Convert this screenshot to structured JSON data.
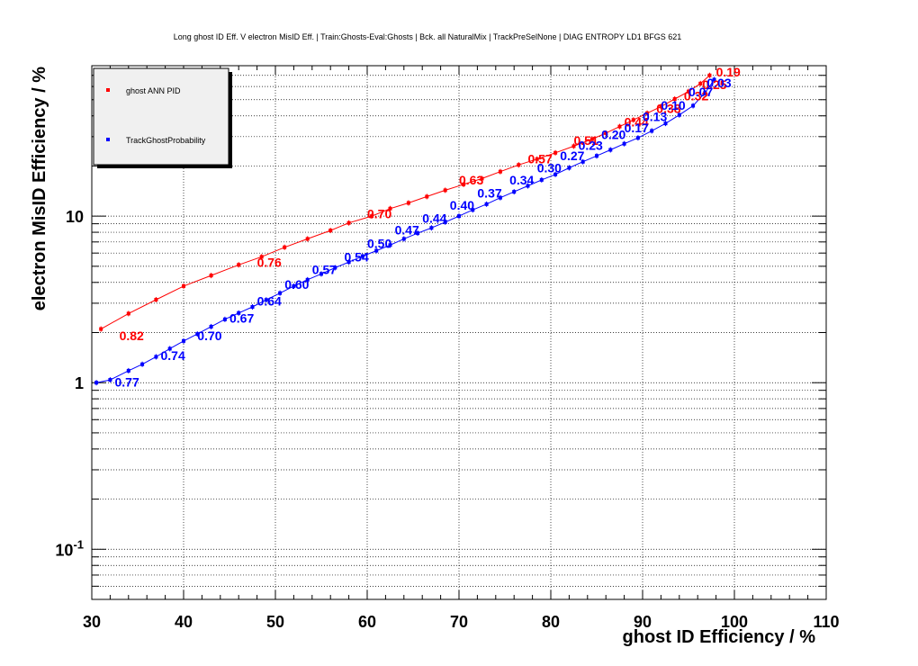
{
  "chart_data": {
    "type": "line",
    "title": "Long ghost ID Eff. V electron MisID Eff. | Train:Ghosts-Eval:Ghosts | Bck. all NaturalMix | TrackPreSelNone | DIAG ENTROPY LD1 BFGS 621",
    "xlabel": "ghost ID Efficiency / %",
    "ylabel": "electron MisID Efficiency / %",
    "x_scale": "linear",
    "y_scale": "log",
    "xlim": [
      30,
      110
    ],
    "ylim": [
      0.05,
      80
    ],
    "grid": true,
    "legend_position": "top-left",
    "x_ticks": [
      "30",
      "40",
      "50",
      "60",
      "70",
      "80",
      "90",
      "100",
      "110"
    ],
    "y_ticks": [
      {
        "value": 10,
        "label": "10"
      },
      {
        "value": 1,
        "label": "1"
      },
      {
        "value": 0.1,
        "label": "10",
        "sup": "-1"
      }
    ],
    "series": [
      {
        "name": "ghost ANN PID",
        "color": "#ff0000",
        "points": [
          [
            31,
            2.1
          ],
          [
            34,
            2.6
          ],
          [
            37,
            3.15
          ],
          [
            40,
            3.8
          ],
          [
            43,
            4.4
          ],
          [
            46,
            5.1
          ],
          [
            48.5,
            5.7
          ],
          [
            51,
            6.5
          ],
          [
            53.5,
            7.3
          ],
          [
            56,
            8.2
          ],
          [
            58,
            9.1
          ],
          [
            60.5,
            10.0
          ],
          [
            62.5,
            11.1
          ],
          [
            64.5,
            12.0
          ],
          [
            66.5,
            13.1
          ],
          [
            68.5,
            14.3
          ],
          [
            70.5,
            15.5
          ],
          [
            72.5,
            16.8
          ],
          [
            74.5,
            18.5
          ],
          [
            76.5,
            20.3
          ],
          [
            78.5,
            22.0
          ],
          [
            80.5,
            24.0
          ],
          [
            82.5,
            26.3
          ],
          [
            84.5,
            29.0
          ],
          [
            86,
            31.5
          ],
          [
            87.5,
            34.5
          ],
          [
            89,
            37.8
          ],
          [
            90.5,
            41.5
          ],
          [
            92,
            45.5
          ],
          [
            93.5,
            50.5
          ],
          [
            95,
            56.0
          ],
          [
            96.3,
            62.5
          ],
          [
            97.3,
            70.0
          ]
        ],
        "labels": [
          {
            "x": 33,
            "y": 1.8,
            "text": "0.82"
          },
          {
            "x": 48,
            "y": 4.95,
            "text": "0.76"
          },
          {
            "x": 60,
            "y": 9.7,
            "text": "0.70"
          },
          {
            "x": 70,
            "y": 15.5,
            "text": "0.63"
          },
          {
            "x": 77.5,
            "y": 20.8,
            "text": "0.57"
          },
          {
            "x": 82.5,
            "y": 26.7,
            "text": "0.51"
          },
          {
            "x": 88,
            "y": 34.6,
            "text": "0.44"
          },
          {
            "x": 91.5,
            "y": 41.7,
            "text": "0.38"
          },
          {
            "x": 94.5,
            "y": 49.5,
            "text": "0.32"
          },
          {
            "x": 96.5,
            "y": 58.0,
            "text": "0.25"
          },
          {
            "x": 98,
            "y": 69.0,
            "text": "0.19"
          }
        ]
      },
      {
        "name": "TrackGhostProbability",
        "color": "#0000ff",
        "points": [
          [
            30.5,
            1.0
          ],
          [
            32,
            1.04
          ],
          [
            34,
            1.18
          ],
          [
            35.5,
            1.29
          ],
          [
            37,
            1.43
          ],
          [
            38.5,
            1.6
          ],
          [
            40,
            1.78
          ],
          [
            41.5,
            1.96
          ],
          [
            43,
            2.17
          ],
          [
            44.5,
            2.4
          ],
          [
            46,
            2.62
          ],
          [
            47.5,
            2.85
          ],
          [
            49,
            3.14
          ],
          [
            50.5,
            3.45
          ],
          [
            52,
            3.8
          ],
          [
            53.5,
            4.15
          ],
          [
            55,
            4.5
          ],
          [
            56.5,
            4.9
          ],
          [
            58,
            5.3
          ],
          [
            59.5,
            5.75
          ],
          [
            61,
            6.2
          ],
          [
            62.5,
            6.7
          ],
          [
            64,
            7.3
          ],
          [
            65.5,
            7.9
          ],
          [
            67,
            8.5
          ],
          [
            68.5,
            9.2
          ],
          [
            70,
            10.0
          ],
          [
            71.5,
            10.9
          ],
          [
            73,
            11.8
          ],
          [
            74.5,
            12.9
          ],
          [
            76,
            14.0
          ],
          [
            77.5,
            15.2
          ],
          [
            79,
            16.5
          ],
          [
            80.5,
            17.8
          ],
          [
            82,
            19.5
          ],
          [
            83.5,
            21.2
          ],
          [
            85,
            23.0
          ],
          [
            86.5,
            25.0
          ],
          [
            88,
            27.2
          ],
          [
            89.5,
            29.5
          ],
          [
            91,
            32.5
          ],
          [
            92.5,
            36.0
          ],
          [
            94,
            40.5
          ],
          [
            95.5,
            46.0
          ],
          [
            96.8,
            55.0
          ],
          [
            97.8,
            66.0
          ]
        ],
        "labels": [
          {
            "x": 32.5,
            "y": 0.95,
            "text": "0.77"
          },
          {
            "x": 37.5,
            "y": 1.37,
            "text": "0.74"
          },
          {
            "x": 41.5,
            "y": 1.8,
            "text": "0.70"
          },
          {
            "x": 45,
            "y": 2.3,
            "text": "0.67"
          },
          {
            "x": 48,
            "y": 2.9,
            "text": "0.64"
          },
          {
            "x": 51,
            "y": 3.65,
            "text": "0.60"
          },
          {
            "x": 54,
            "y": 4.5,
            "text": "0.57"
          },
          {
            "x": 57.5,
            "y": 5.35,
            "text": "0.54"
          },
          {
            "x": 60,
            "y": 6.45,
            "text": "0.50"
          },
          {
            "x": 63,
            "y": 7.75,
            "text": "0.47"
          },
          {
            "x": 66,
            "y": 9.1,
            "text": "0.44"
          },
          {
            "x": 69,
            "y": 10.9,
            "text": "0.40"
          },
          {
            "x": 72,
            "y": 12.9,
            "text": "0.37"
          },
          {
            "x": 75.5,
            "y": 15.5,
            "text": "0.34"
          },
          {
            "x": 78.5,
            "y": 18.3,
            "text": "0.30"
          },
          {
            "x": 81,
            "y": 21.7,
            "text": "0.27"
          },
          {
            "x": 83,
            "y": 25.0,
            "text": "0.23"
          },
          {
            "x": 85.5,
            "y": 29.0,
            "text": "0.20"
          },
          {
            "x": 88,
            "y": 31.8,
            "text": "0.17"
          },
          {
            "x": 90,
            "y": 37.2,
            "text": "0.13"
          },
          {
            "x": 92,
            "y": 43.5,
            "text": "0.10"
          },
          {
            "x": 95,
            "y": 52.5,
            "text": "0.07"
          },
          {
            "x": 97,
            "y": 59.5,
            "text": "0.03"
          }
        ]
      }
    ]
  }
}
